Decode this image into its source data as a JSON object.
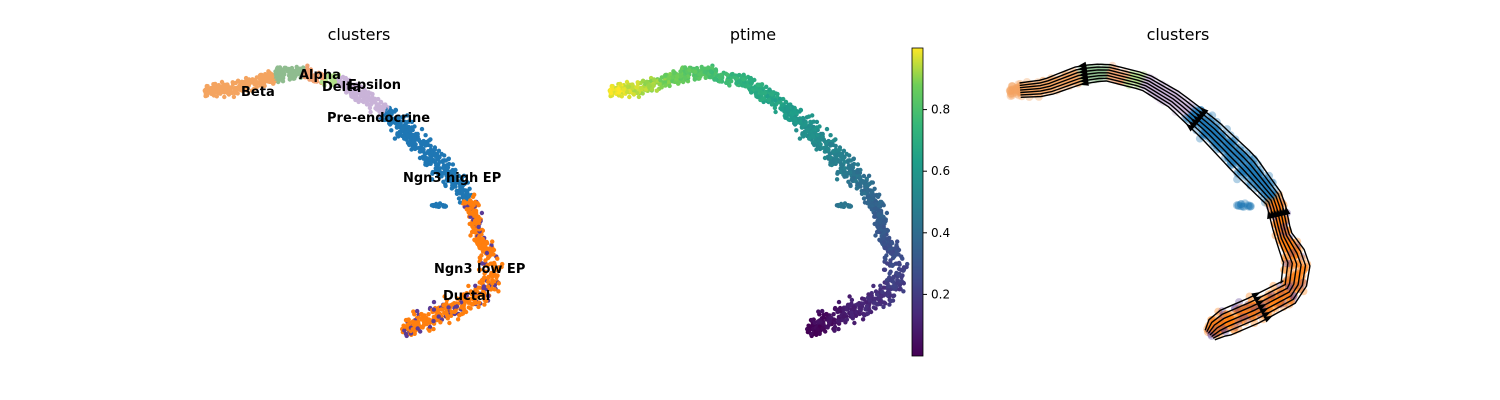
{
  "chart_data": [
    {
      "type": "scatter",
      "title": "clusters",
      "legend": "on data",
      "series": [
        {
          "name": "Beta",
          "color": "#f4a460"
        },
        {
          "name": "Alpha",
          "color": "#8fbc8f"
        },
        {
          "name": "Delta",
          "color": "#f0a070"
        },
        {
          "name": "Epsilon",
          "color": "#b2df8a"
        },
        {
          "name": "Pre-endocrine",
          "color": "#c9b3d8"
        },
        {
          "name": "Ngn3 high EP",
          "color": "#1f77b4"
        },
        {
          "name": "Ngn3 low EP",
          "color": "#ff7f0e"
        },
        {
          "name": "Ductal",
          "color": "#ff7f0e"
        }
      ],
      "extra_colors": {
        "scatter_purple": "#5b3c96"
      }
    },
    {
      "type": "scatter",
      "title": "ptime",
      "colorbar": {
        "ticks": [
          "0.2",
          "0.4",
          "0.6",
          "0.8"
        ],
        "tick_values": [
          0.2,
          0.4,
          0.6,
          0.8
        ],
        "range": [
          0,
          1
        ],
        "colormap": "viridis"
      }
    },
    {
      "type": "scatter",
      "title": "clusters",
      "overlay": "velocity streamlines"
    }
  ]
}
